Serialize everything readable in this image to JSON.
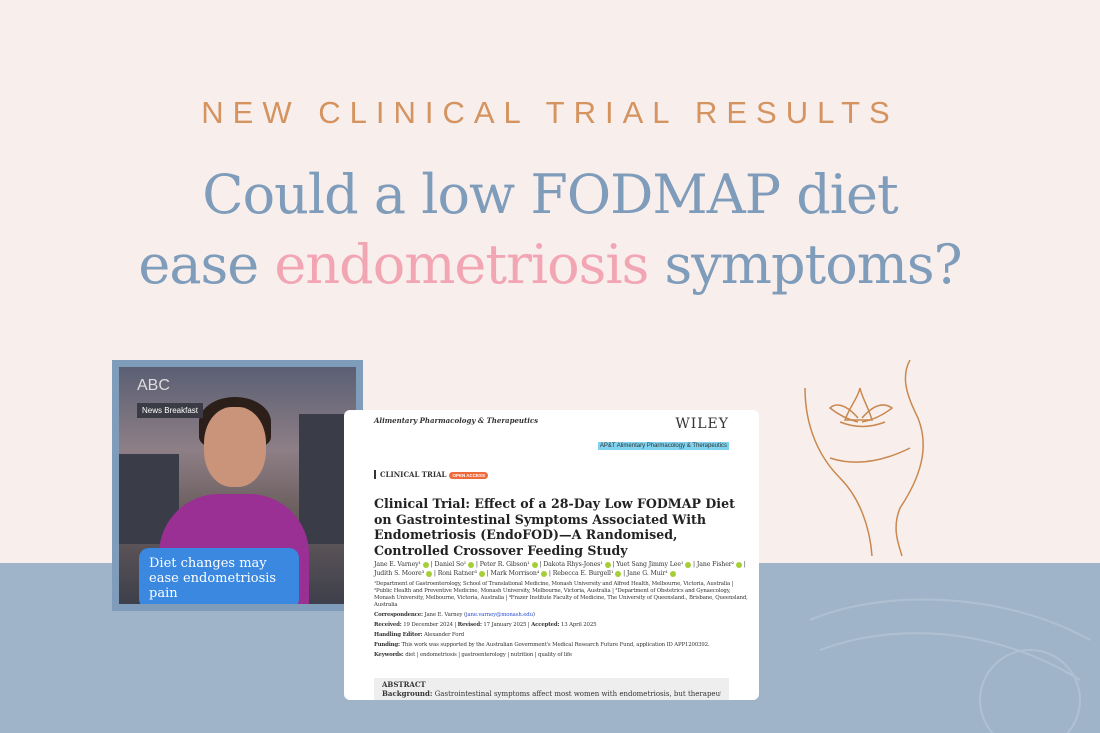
{
  "kicker": "NEW CLINICAL TRIAL RESULTS",
  "headline": {
    "line1": "Could a low FODMAP diet",
    "line2_pre": "ease ",
    "line2_accent": "endometriosis",
    "line2_post": " symptoms?"
  },
  "video": {
    "logo": "ABC",
    "tag": "News Breakfast",
    "caption": "Diet changes may ease endometriosis pain"
  },
  "paper": {
    "journal": "Alimentary Pharmacology & Therapeutics",
    "publisher": "WILEY",
    "journal_badge": "AP&T Alimentary Pharmacology & Therapeutics",
    "category": "CLINICAL TRIAL",
    "open_access": "OPEN ACCESS",
    "title": "Clinical Trial: Effect of a 28-Day Low FODMAP Diet on Gastrointestinal Symptoms Associated With Endometriosis (EndoFOD)—A Randomised, Controlled Crossover Feeding Study",
    "authors": [
      "Jane E. Varney¹",
      "Daniel So¹",
      "Peter R. Gibson¹",
      "Dakota Rhys-Jones¹",
      "Yuet Sang Jimmy Lee¹",
      "Jane Fisher²",
      "Judith S. Moore³",
      "Roni Ratner³",
      "Mark Morrison⁴",
      "Rebecca E. Burgell¹",
      "Jane G. Muir¹"
    ],
    "affiliations": "¹Department of Gastroenterology, School of Translational Medicine, Monash University and Alfred Health, Melbourne, Victoria, Australia | ²Public Health and Preventive Medicine, Monash University, Melbourne, Victoria, Australia | ³Department of Obstetrics and Gynaecology, Monash University, Melbourne, Victoria, Australia | ⁴Frazer Institute Faculty of Medicine, The University of Queensland., Brisbane, Queensland, Australia",
    "correspondence_label": "Correspondence:",
    "correspondence": "Jane E. Varney (",
    "email": "jane.varney@monash.edu",
    "correspondence_end": ")",
    "received_label": "Received:",
    "received": "19 December 2024",
    "revised_label": "Revised:",
    "revised": "17 January 2025",
    "accepted_label": "Accepted:",
    "accepted": "13 April 2025",
    "editor_label": "Handling Editor:",
    "editor": "Alexander Ford",
    "funding_label": "Funding:",
    "funding": "This work was supported by the Australian Government's Medical Research Future Fund, application ID APP1200392.",
    "keywords_label": "Keywords:",
    "keywords": "diet | endometriosis | gastroenterology | nutrition | quality of life",
    "abstract_heading": "ABSTRACT",
    "background_label": "Background:",
    "background": "Gastrointestinal symptoms affect most women with endometriosis, but therapeutic interventions are poorly"
  },
  "colors": {
    "bg_top": "#f8efed",
    "bg_bottom": "#a0b4c9",
    "kicker": "#d4935f",
    "headline": "#7f9cba",
    "accent": "#f2a6b4",
    "caption": "#3a88e0"
  }
}
